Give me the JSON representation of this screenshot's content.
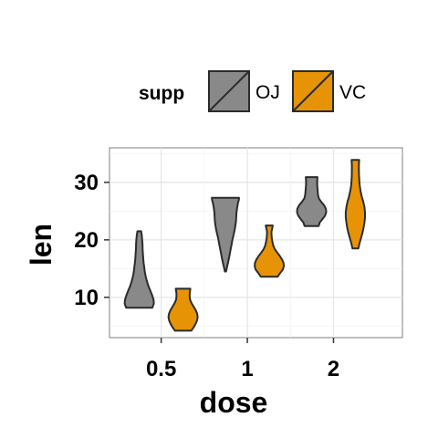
{
  "chart_data": {
    "type": "violin",
    "xlabel": "dose",
    "ylabel": "len",
    "categories": [
      "0.5",
      "1",
      "2"
    ],
    "ylim": [
      3,
      36
    ],
    "yticks": [
      10,
      20,
      30
    ],
    "grid": true,
    "legend": {
      "title": "supp",
      "position": "top",
      "entries": [
        {
          "name": "OJ",
          "color": "#898989"
        },
        {
          "name": "VC",
          "color": "#E69406"
        }
      ]
    },
    "series": [
      {
        "name": "OJ",
        "color": "#898989",
        "violins": [
          {
            "category": "0.5",
            "min": 8.2,
            "max": 21.5,
            "profile": [
              [
                8.2,
                0.9
              ],
              [
                8.9,
                1.0
              ],
              [
                9.6,
                0.98
              ],
              [
                10.4,
                0.88
              ],
              [
                11.2,
                0.75
              ],
              [
                12.0,
                0.62
              ],
              [
                12.8,
                0.52
              ],
              [
                13.6,
                0.44
              ],
              [
                14.4,
                0.38
              ],
              [
                15.2,
                0.34
              ],
              [
                16.0,
                0.3
              ],
              [
                16.8,
                0.27
              ],
              [
                17.6,
                0.25
              ],
              [
                18.4,
                0.23
              ],
              [
                19.2,
                0.22
              ],
              [
                20.0,
                0.2
              ],
              [
                20.8,
                0.17
              ],
              [
                21.5,
                0.13
              ]
            ]
          },
          {
            "category": "1",
            "min": 14.5,
            "max": 27.3,
            "profile": [
              [
                14.5,
                0.04
              ],
              [
                15.2,
                0.1
              ],
              [
                16.0,
                0.17
              ],
              [
                16.8,
                0.24
              ],
              [
                17.6,
                0.3
              ],
              [
                18.4,
                0.36
              ],
              [
                19.2,
                0.42
              ],
              [
                20.0,
                0.48
              ],
              [
                20.8,
                0.55
              ],
              [
                21.6,
                0.62
              ],
              [
                22.4,
                0.68
              ],
              [
                23.2,
                0.72
              ],
              [
                24.0,
                0.74
              ],
              [
                24.8,
                0.76
              ],
              [
                25.6,
                0.8
              ],
              [
                26.4,
                0.86
              ],
              [
                27.0,
                0.92
              ],
              [
                27.3,
                0.93
              ]
            ]
          },
          {
            "category": "2",
            "min": 22.4,
            "max": 30.9,
            "profile": [
              [
                22.4,
                0.48
              ],
              [
                23.0,
                0.56
              ],
              [
                23.6,
                0.74
              ],
              [
                24.2,
                0.92
              ],
              [
                24.8,
                1.0
              ],
              [
                25.4,
                0.98
              ],
              [
                26.0,
                0.86
              ],
              [
                26.6,
                0.66
              ],
              [
                27.2,
                0.5
              ],
              [
                27.8,
                0.44
              ],
              [
                28.4,
                0.42
              ],
              [
                29.0,
                0.4
              ],
              [
                29.6,
                0.38
              ],
              [
                30.2,
                0.38
              ],
              [
                30.9,
                0.4
              ]
            ]
          }
        ]
      },
      {
        "name": "VC",
        "color": "#E69406",
        "violins": [
          {
            "category": "0.5",
            "min": 4.2,
            "max": 11.5,
            "profile": [
              [
                4.2,
                0.56
              ],
              [
                4.8,
                0.72
              ],
              [
                5.4,
                0.86
              ],
              [
                6.0,
                0.96
              ],
              [
                6.6,
                1.0
              ],
              [
                7.2,
                0.96
              ],
              [
                7.8,
                0.86
              ],
              [
                8.4,
                0.72
              ],
              [
                9.0,
                0.58
              ],
              [
                9.6,
                0.48
              ],
              [
                10.2,
                0.45
              ],
              [
                10.8,
                0.46
              ],
              [
                11.5,
                0.5
              ]
            ]
          },
          {
            "category": "1",
            "min": 13.6,
            "max": 22.5,
            "profile": [
              [
                13.6,
                0.58
              ],
              [
                14.2,
                0.74
              ],
              [
                14.8,
                0.92
              ],
              [
                15.4,
                1.0
              ],
              [
                16.0,
                0.98
              ],
              [
                16.6,
                0.88
              ],
              [
                17.2,
                0.72
              ],
              [
                17.8,
                0.54
              ],
              [
                18.4,
                0.38
              ],
              [
                19.0,
                0.28
              ],
              [
                19.6,
                0.22
              ],
              [
                20.2,
                0.18
              ],
              [
                20.8,
                0.16
              ],
              [
                21.4,
                0.15
              ],
              [
                22.0,
                0.2
              ],
              [
                22.5,
                0.24
              ]
            ]
          },
          {
            "category": "2",
            "min": 18.5,
            "max": 33.9,
            "profile": [
              [
                18.5,
                0.2
              ],
              [
                19.4,
                0.28
              ],
              [
                20.3,
                0.38
              ],
              [
                21.2,
                0.48
              ],
              [
                22.1,
                0.56
              ],
              [
                23.0,
                0.62
              ],
              [
                23.9,
                0.66
              ],
              [
                24.8,
                0.66
              ],
              [
                25.7,
                0.62
              ],
              [
                26.6,
                0.54
              ],
              [
                27.5,
                0.44
              ],
              [
                28.4,
                0.36
              ],
              [
                29.3,
                0.3
              ],
              [
                30.2,
                0.27
              ],
              [
                31.1,
                0.25
              ],
              [
                32.0,
                0.24
              ],
              [
                33.0,
                0.24
              ],
              [
                33.9,
                0.26
              ]
            ]
          }
        ]
      }
    ]
  }
}
